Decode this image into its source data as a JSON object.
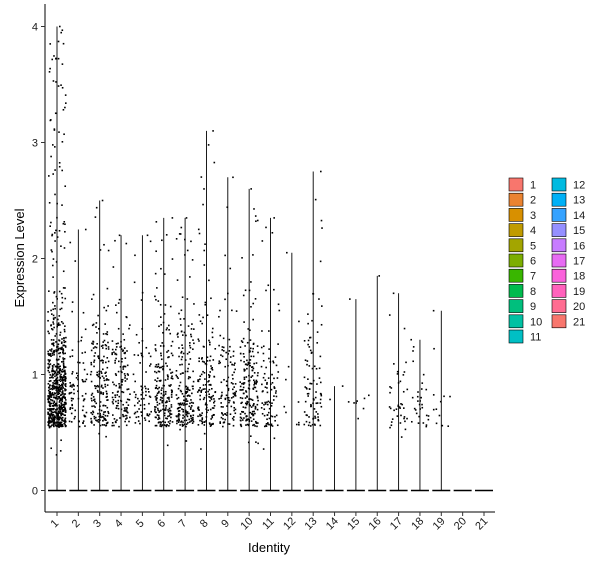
{
  "chart_data": {
    "type": "violin",
    "xlabel": "Identity",
    "ylabel": "Expression Level",
    "ylim": [
      -0.15,
      4.2
    ],
    "yticks": [
      0,
      1,
      2,
      3,
      4
    ],
    "grid": false,
    "legend_position": "right",
    "categories": [
      "1",
      "2",
      "3",
      "4",
      "5",
      "6",
      "7",
      "8",
      "9",
      "10",
      "11",
      "12",
      "13",
      "14",
      "15",
      "16",
      "17",
      "18",
      "19",
      "20",
      "21"
    ],
    "max_values": [
      4.0,
      2.25,
      2.5,
      2.2,
      2.2,
      2.35,
      2.35,
      3.1,
      2.7,
      2.6,
      2.35,
      2.05,
      2.75,
      0.9,
      1.65,
      1.85,
      1.7,
      1.3,
      1.55,
      0.0,
      0.0
    ],
    "approx_expressing_cells": [
      700,
      80,
      180,
      140,
      70,
      200,
      190,
      150,
      110,
      190,
      90,
      10,
      90,
      2,
      8,
      2,
      40,
      30,
      12,
      0,
      0
    ],
    "colors": [
      "#F8766D",
      "#EA8331",
      "#D89000",
      "#C09B00",
      "#A3A500",
      "#7CAE00",
      "#39B600",
      "#00BB4E",
      "#00BF7D",
      "#00C1A3",
      "#00BFC4",
      "#00BAE0",
      "#00B0F6",
      "#35A2FF",
      "#9590FF",
      "#C77CFF",
      "#E76BF3",
      "#FA62DB",
      "#FF62BC",
      "#FF6C91",
      "#F8766D"
    ]
  }
}
